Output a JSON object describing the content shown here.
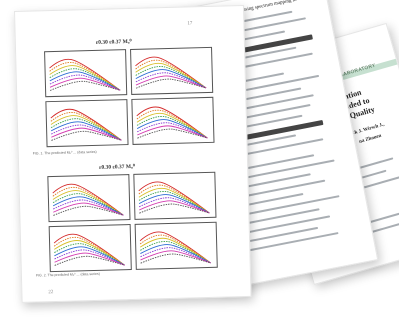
{
  "sheets": {
    "back": {
      "header_label": "LABORATORY",
      "title_lines": [
        "lation",
        "ended to",
        "Quality"
      ],
      "subtitle_lines": [
        "ck J. Wirsch J.,",
        "na Zhouen"
      ]
    },
    "middle": {
      "heading": "bluedia using spectrum mapping in"
    },
    "front": {
      "page_number": "17",
      "figures": [
        {
          "title": "ɛ0.30 ɛ0.37 Mᵤ⁰",
          "caption": "FIG. 1. The predicted Mᵤ⁰ ... (data series)"
        },
        {
          "title": "ɛ0.30 ɛ0.37 Mᵤ⁰",
          "caption": "FIG. 2. The predicted Mᵤ⁰ ... (data series)"
        }
      ],
      "footer_page": "22"
    }
  },
  "colors": {
    "series": [
      "#d42a2a",
      "#e07a1e",
      "#d8c02a",
      "#3aa04a",
      "#2a6ad4",
      "#8a3ad4",
      "#d43ab0",
      "#555555"
    ]
  }
}
